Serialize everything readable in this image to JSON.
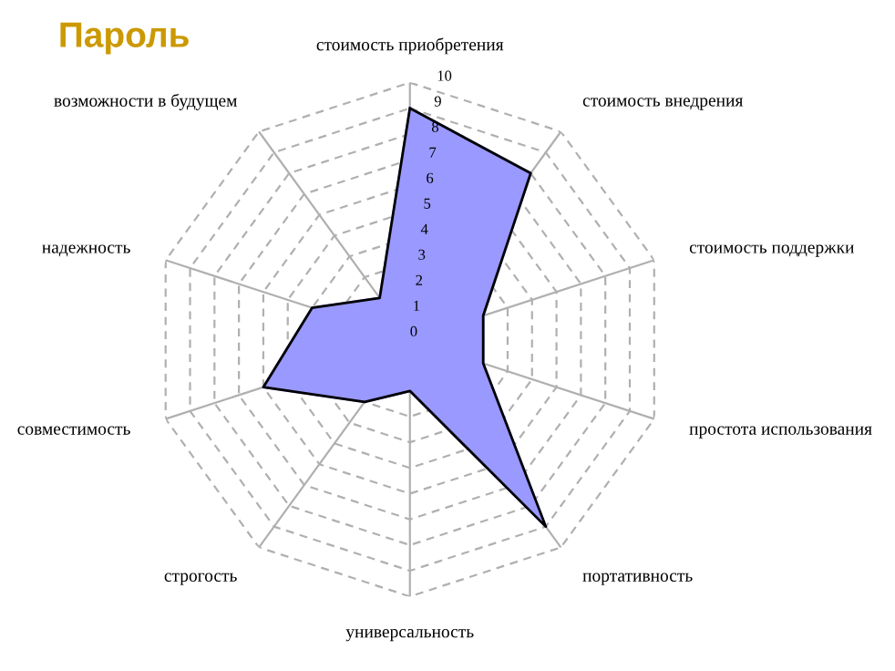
{
  "chart_data": {
    "type": "radar",
    "title": "Пароль",
    "categories": [
      "стоимость приобретения",
      "стоимость внедрения",
      "стоимость поддержки",
      "простота использования",
      "портативность",
      "универсальность",
      "строгость",
      "совместимость",
      "надежность",
      "возможности в будущем"
    ],
    "series": [
      {
        "color": "#9999ff",
        "values": [
          9,
          8,
          3,
          3,
          9,
          2,
          3,
          6,
          4,
          2
        ]
      }
    ],
    "ylim": [
      0,
      10
    ],
    "yticks": [
      0,
      1,
      2,
      3,
      4,
      5,
      6,
      7,
      8,
      9,
      10
    ],
    "grid": true,
    "legend": false
  }
}
